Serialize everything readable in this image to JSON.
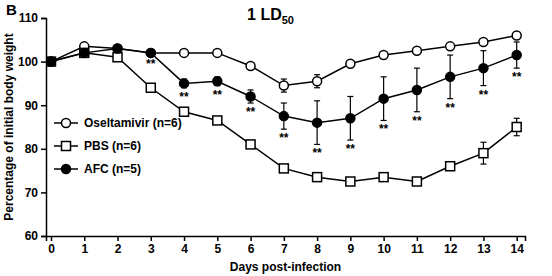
{
  "chart_data": {
    "type": "line",
    "title": "1 LD50",
    "x_label": "Days post-infection",
    "y_label": "Percentage of initial body weight",
    "x": [
      0,
      1,
      2,
      3,
      4,
      5,
      6,
      7,
      8,
      9,
      10,
      11,
      12,
      13,
      14
    ],
    "xlim": [
      -0.15,
      14.25
    ],
    "xticks": [
      0,
      1,
      2,
      3,
      4,
      5,
      6,
      7,
      8,
      9,
      10,
      11,
      12,
      13,
      14
    ],
    "ylim": [
      60,
      110
    ],
    "yticks": [
      60,
      70,
      80,
      90,
      100,
      110
    ],
    "legend": "left",
    "grid": false,
    "series": [
      {
        "name": "Oseltamivir (n=6)",
        "color": "#000000",
        "marker": "open-circle",
        "line_style": "solid",
        "values": [
          100,
          103.5,
          103,
          102,
          102,
          102,
          99,
          94.5,
          95.5,
          99.5,
          101.5,
          102.5,
          103.5,
          104.5,
          106
        ],
        "errors": [
          null,
          null,
          null,
          null,
          null,
          null,
          null,
          1.5,
          1.5,
          null,
          null,
          null,
          null,
          null,
          null
        ]
      },
      {
        "name": "PBS (n=6)",
        "color": "#000000",
        "marker": "open-square",
        "line_style": "solid",
        "values": [
          100,
          102,
          101,
          94,
          88.5,
          86.5,
          81,
          75.5,
          73.5,
          72.5,
          73.5,
          72.5,
          76,
          79,
          85
        ],
        "errors": [
          null,
          null,
          null,
          null,
          null,
          null,
          null,
          null,
          null,
          null,
          null,
          null,
          null,
          2.5,
          2
        ]
      },
      {
        "name": "AFC (n=5)",
        "color": "#000000",
        "marker": "circle",
        "line_style": "solid",
        "values": [
          100,
          102,
          103,
          102,
          95,
          95.5,
          92,
          87.5,
          86,
          87,
          91.5,
          93.5,
          96.5,
          98.5,
          101.5
        ],
        "errors": [
          null,
          null,
          null,
          0.5,
          1,
          1,
          1.5,
          3,
          5,
          5,
          5,
          5,
          5,
          4,
          3
        ]
      }
    ],
    "annotations": [
      {
        "text": "B"
      },
      {
        "text": "**",
        "x": 3
      },
      {
        "text": "**",
        "x": 4
      },
      {
        "text": "**",
        "x": 5
      },
      {
        "text": "**",
        "x": 6
      },
      {
        "text": "**",
        "x": 7
      },
      {
        "text": "**",
        "x": 8
      },
      {
        "text": "**",
        "x": 9
      },
      {
        "text": "**",
        "x": 10
      },
      {
        "text": "**",
        "x": 11
      },
      {
        "text": "**",
        "x": 12
      },
      {
        "text": "**",
        "x": 13
      },
      {
        "text": "**",
        "x": 14
      }
    ]
  }
}
